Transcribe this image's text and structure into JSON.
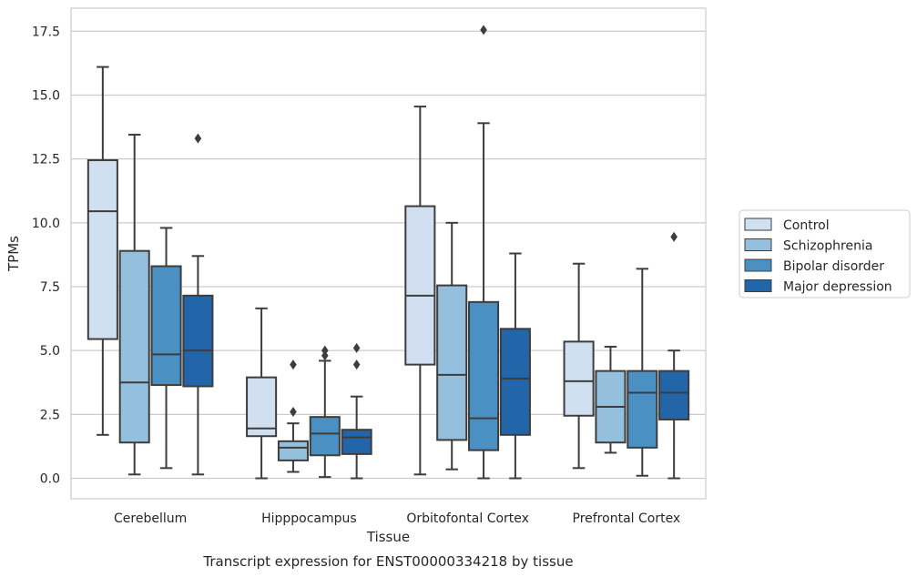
{
  "chart_data": {
    "type": "box",
    "title": "",
    "caption": "Transcript expression for ENST00000334218 by tissue",
    "xlabel": "Tissue",
    "ylabel": "TPMs",
    "ylim": [
      -0.8,
      18.4
    ],
    "yticks": [
      0.0,
      2.5,
      5.0,
      7.5,
      10.0,
      12.5,
      15.0,
      17.5
    ],
    "ytick_labels": [
      "0.0",
      "2.5",
      "5.0",
      "7.5",
      "10.0",
      "12.5",
      "15.0",
      "17.5"
    ],
    "grid": "horizontal",
    "legend_position": "right",
    "categories": [
      "Cerebellum",
      "Hipppocampus",
      "Orbitofontal Cortex",
      "Prefrontal Cortex"
    ],
    "series": [
      {
        "name": "Control",
        "color": "#d0e0f0",
        "boxes": [
          {
            "whisker_low": 1.7,
            "q1": 5.45,
            "median": 10.45,
            "q3": 12.45,
            "whisker_high": 16.1,
            "outliers": []
          },
          {
            "whisker_low": 0.0,
            "q1": 1.65,
            "median": 1.95,
            "q3": 3.95,
            "whisker_high": 6.65,
            "outliers": []
          },
          {
            "whisker_low": 0.15,
            "q1": 4.45,
            "median": 7.15,
            "q3": 10.65,
            "whisker_high": 14.55,
            "outliers": []
          },
          {
            "whisker_low": 0.4,
            "q1": 2.45,
            "median": 3.8,
            "q3": 5.35,
            "whisker_high": 8.4,
            "outliers": []
          }
        ]
      },
      {
        "name": "Schizophrenia",
        "color": "#94c0dd",
        "boxes": [
          {
            "whisker_low": 0.15,
            "q1": 1.4,
            "median": 3.75,
            "q3": 8.9,
            "whisker_high": 13.45,
            "outliers": []
          },
          {
            "whisker_low": 0.25,
            "q1": 0.7,
            "median": 1.2,
            "q3": 1.45,
            "whisker_high": 2.15,
            "outliers": [
              2.6,
              4.45
            ]
          },
          {
            "whisker_low": 0.35,
            "q1": 1.5,
            "median": 4.05,
            "q3": 7.55,
            "whisker_high": 10.0,
            "outliers": []
          },
          {
            "whisker_low": 1.0,
            "q1": 1.4,
            "median": 2.8,
            "q3": 4.2,
            "whisker_high": 5.15,
            "outliers": []
          }
        ]
      },
      {
        "name": "Bipolar disorder",
        "color": "#4b90c3",
        "boxes": [
          {
            "whisker_low": 0.4,
            "q1": 3.65,
            "median": 4.85,
            "q3": 8.3,
            "whisker_high": 9.8,
            "outliers": []
          },
          {
            "whisker_low": 0.05,
            "q1": 0.9,
            "median": 1.75,
            "q3": 2.4,
            "whisker_high": 4.6,
            "outliers": [
              4.8,
              5.0
            ]
          },
          {
            "whisker_low": 0.0,
            "q1": 1.1,
            "median": 2.35,
            "q3": 6.9,
            "whisker_high": 13.9,
            "outliers": [
              17.55
            ]
          },
          {
            "whisker_low": 0.1,
            "q1": 1.2,
            "median": 3.35,
            "q3": 4.2,
            "whisker_high": 8.2,
            "outliers": []
          }
        ]
      },
      {
        "name": "Major depression",
        "color": "#2265a8",
        "boxes": [
          {
            "whisker_low": 0.15,
            "q1": 3.6,
            "median": 5.0,
            "q3": 7.15,
            "whisker_high": 8.7,
            "outliers": [
              13.3
            ]
          },
          {
            "whisker_low": 0.0,
            "q1": 0.95,
            "median": 1.6,
            "q3": 1.9,
            "whisker_high": 3.2,
            "outliers": [
              4.45,
              5.1
            ]
          },
          {
            "whisker_low": 0.0,
            "q1": 1.7,
            "median": 3.9,
            "q3": 5.85,
            "whisker_high": 8.8,
            "outliers": []
          },
          {
            "whisker_low": 0.0,
            "q1": 2.3,
            "median": 3.35,
            "q3": 4.2,
            "whisker_high": 5.0,
            "outliers": [
              9.45
            ]
          }
        ]
      }
    ]
  }
}
